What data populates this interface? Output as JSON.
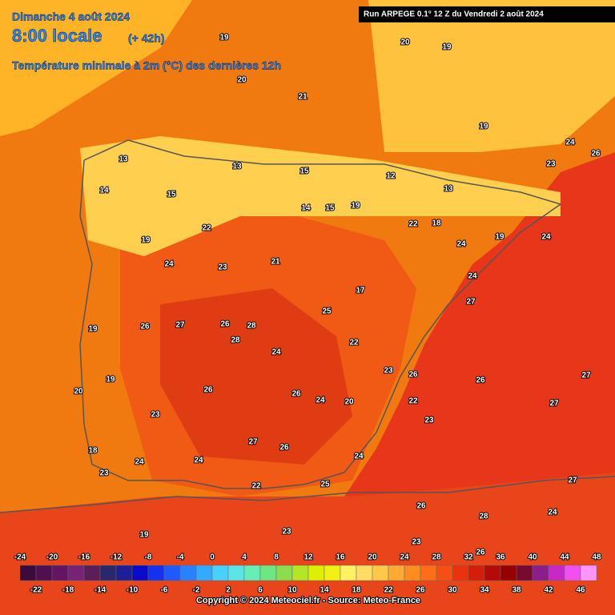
{
  "header": {
    "date": "Dimanche 4 août 2024",
    "time": "8:00 locale",
    "lead": "(+ 42h)",
    "parameter": "Température minimale à 2m (°C) des dernières 12h",
    "run": "Run ARPEGE 0.1° 12 Z du Vendredi 2 août 2024"
  },
  "legend": {
    "ticks_top": [
      -24,
      -20,
      -16,
      -12,
      -8,
      -4,
      0,
      4,
      8,
      12,
      16,
      20,
      24,
      28,
      32,
      36,
      40,
      44,
      48
    ],
    "ticks_bottom": [
      -22,
      -18,
      -14,
      -10,
      -6,
      -2,
      2,
      6,
      10,
      14,
      18,
      22,
      26,
      30,
      34,
      38,
      42,
      46
    ],
    "colors": [
      "#3c0a3c",
      "#500f50",
      "#641464",
      "#782378",
      "#5a1e5a",
      "#28286e",
      "#1e1e96",
      "#0a0ac8",
      "#1432f0",
      "#1e5aff",
      "#2882ff",
      "#32aaff",
      "#46d2ff",
      "#5ae6e6",
      "#64f0b4",
      "#6ee682",
      "#8cdc50",
      "#b4e628",
      "#dcf000",
      "#f0f014",
      "#fff064",
      "#ffdc64",
      "#ffc846",
      "#ffaa32",
      "#ff8c1e",
      "#ff6e14",
      "#f55014",
      "#eb320f",
      "#d21e0a",
      "#b40a0a",
      "#960000",
      "#780a32",
      "#8c1e8c",
      "#c828c8",
      "#f050f0",
      "#ff96ff"
    ]
  },
  "map_labels": [
    19,
    20,
    21,
    20,
    19,
    19,
    24,
    26,
    23,
    13,
    13,
    15,
    12,
    13,
    14,
    15,
    14,
    15,
    19,
    22,
    18,
    22,
    19,
    24,
    19,
    24,
    21,
    23,
    24,
    17,
    24,
    27,
    25,
    26,
    28,
    28,
    26,
    19,
    27,
    24,
    22,
    23,
    26,
    26,
    27,
    27,
    19,
    20,
    26,
    26,
    24,
    20,
    22,
    23,
    27,
    26,
    24,
    23,
    24,
    24,
    18,
    23,
    22,
    25,
    26,
    28,
    27,
    24,
    23,
    19,
    23,
    26
  ],
  "footer": "Copyright © 2024 Meteociel.fr - Source: Meteo-France"
}
